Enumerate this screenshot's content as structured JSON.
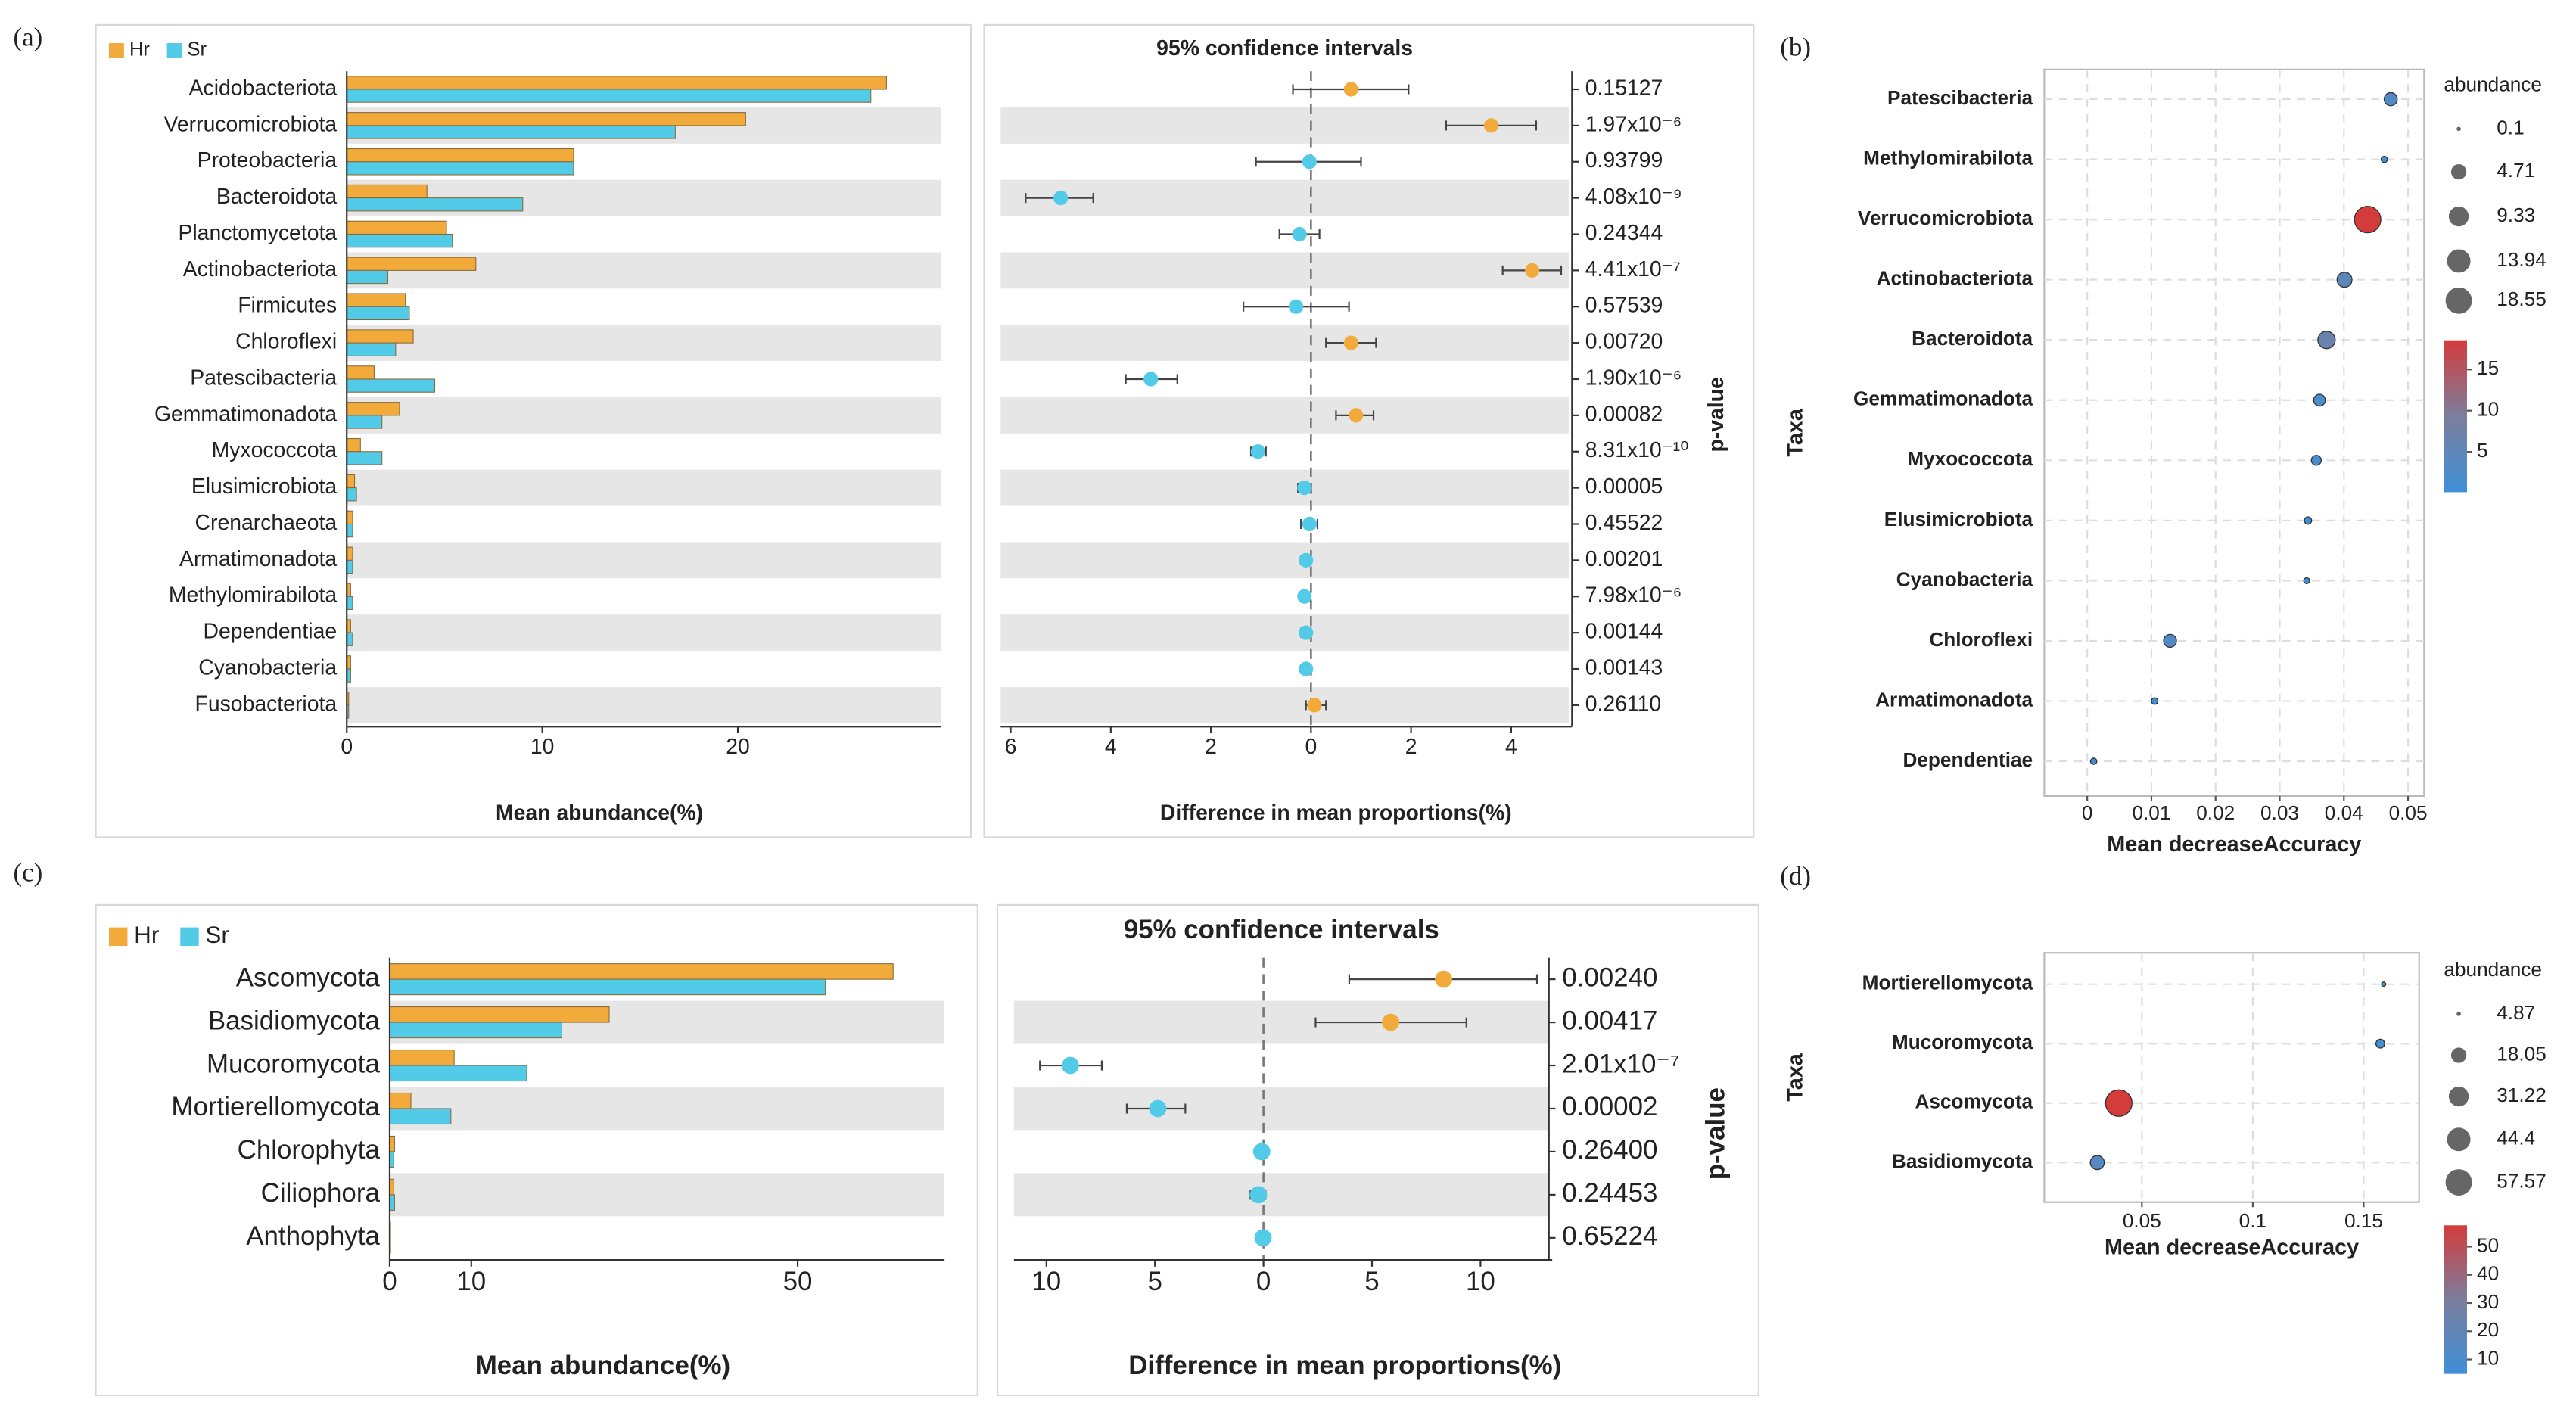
{
  "chart_data": [
    {
      "type": "bar",
      "panel_label": "(a)",
      "xlabel": "Mean abundance(%)",
      "legend": "top-left",
      "categories": [
        "Acidobacteriota",
        "Verrucomicrobiota",
        "Proteobacteria",
        "Bacteroidota",
        "Planctomycetota",
        "Actinobacteriota",
        "Firmicutes",
        "Chloroflexi",
        "Patescibacteria",
        "Gemmatimonadota",
        "Myxococcota",
        "Elusimicrobiota",
        "Crenarchaeota",
        "Armatimonadota",
        "Methylomirabilota",
        "Dependentiae",
        "Cyanobacteria",
        "Fusobacteriota"
      ],
      "series": [
        {
          "name": "Hr",
          "color": "#f2ab3b",
          "values": [
            27.6,
            20.4,
            11.6,
            4.1,
            5.1,
            6.6,
            3.0,
            3.4,
            1.4,
            2.7,
            0.7,
            0.4,
            0.3,
            0.3,
            0.2,
            0.2,
            0.2,
            0.1
          ]
        },
        {
          "name": "Sr",
          "color": "#52cbe9",
          "values": [
            26.8,
            16.8,
            11.6,
            9.0,
            5.4,
            2.1,
            3.2,
            2.5,
            4.5,
            1.8,
            1.8,
            0.5,
            0.3,
            0.3,
            0.3,
            0.3,
            0.2,
            0.1
          ]
        }
      ],
      "xlim": [
        0,
        30.4
      ],
      "xticks": [
        0,
        10,
        20
      ]
    },
    {
      "type": "errorbar",
      "title": "95% confidence intervals",
      "xlabel": "Difference in mean proportions(%)",
      "ylabel": "p-value",
      "positive_color": "#f2ab3b",
      "negative_color": "#52cbe9",
      "values": [
        0.8,
        3.6,
        -0.03,
        -5.0,
        -0.23,
        4.42,
        -0.3,
        0.8,
        -3.2,
        0.9,
        -1.06,
        -0.13,
        -0.03,
        -0.1,
        -0.13,
        -0.1,
        -0.1,
        0.07
      ],
      "lower": [
        -0.36,
        2.7,
        -1.1,
        -5.7,
        -0.63,
        3.83,
        -1.35,
        0.3,
        -3.7,
        0.5,
        -1.2,
        -0.26,
        -0.2,
        -0.2,
        -0.23,
        -0.2,
        -0.2,
        -0.1
      ],
      "upper": [
        1.95,
        4.5,
        1.0,
        -4.35,
        0.17,
        5.0,
        0.76,
        1.3,
        -2.67,
        1.25,
        -0.9,
        0,
        0.13,
        0,
        -0.03,
        0,
        0,
        0.3
      ],
      "p_values": [
        "0.15127",
        "1.97x10⁻⁶",
        "0.93799",
        "4.08x10⁻⁹",
        "0.24344",
        "4.41x10⁻⁷",
        "0.57539",
        "0.00720",
        "1.90x10⁻⁶",
        "0.00082",
        "8.31x10⁻¹⁰",
        "0.00005",
        "0.45522",
        "0.00201",
        "7.98x10⁻⁶",
        "0.00144",
        "0.00143",
        "0.26110"
      ],
      "xlim": [
        -6.2,
        5.15
      ],
      "xticks": [
        {
          "value": -6,
          "label": "6"
        },
        {
          "value": -4,
          "label": "4"
        },
        {
          "value": -2,
          "label": "2"
        },
        0,
        2,
        4
      ]
    },
    {
      "type": "bubble",
      "panel_label": "(b)",
      "xlabel": "Mean decreaseAccuracy",
      "ylabel": "Taxa",
      "legend_title": "abundance",
      "categories": [
        "Patescibacteria",
        "Methylomirabilota",
        "Verrucomicrobiota",
        "Actinobacteriota",
        "Bacteroidota",
        "Gemmatimonadota",
        "Myxococcota",
        "Elusimicrobiota",
        "Cyanobacteria",
        "Chloroflexi",
        "Armatimonadota",
        "Dependentiae"
      ],
      "values": [
        0.0473,
        0.0463,
        0.0437,
        0.0401,
        0.0373,
        0.0362,
        0.0357,
        0.0344,
        0.0342,
        0.0129,
        0.0105,
        0.001
      ],
      "sizes": [
        3.0,
        0.25,
        18.6,
        4.4,
        6.5,
        2.2,
        1.3,
        0.45,
        0.2,
        2.9,
        0.3,
        0.25
      ],
      "size_legend": [
        0.1,
        4.71,
        9.33,
        13.94,
        18.55
      ],
      "colormap": [
        "#3f8fd8",
        "#7b7e9c",
        "#d43c3c"
      ],
      "color_lim": [
        0.1,
        18.55
      ],
      "colorbar_ticks": [
        5,
        10,
        15
      ],
      "xlim": [
        -0.0067,
        0.0525
      ],
      "xticks": [
        0,
        0.01,
        0.02,
        0.03,
        0.04,
        0.05
      ],
      "grid": true
    },
    {
      "type": "bar",
      "panel_label": "(c)",
      "xlabel": "Mean abundance(%)",
      "legend": "top-left",
      "categories": [
        "Ascomycota",
        "Basidiomycota",
        "Mucoromycota",
        "Mortierellomycota",
        "Chlorophyta",
        "Ciliophora",
        "Anthophyta"
      ],
      "series": [
        {
          "name": "Hr",
          "color": "#f2ab3b",
          "values": [
            61.7,
            26.9,
            7.9,
            2.6,
            0.6,
            0.5,
            0.1
          ]
        },
        {
          "name": "Sr",
          "color": "#52cbe9",
          "values": [
            53.4,
            21.1,
            16.8,
            7.5,
            0.5,
            0.6,
            0.1
          ]
        }
      ],
      "xlim": [
        0,
        68
      ],
      "xticks": [
        0,
        10,
        50
      ]
    },
    {
      "type": "errorbar",
      "title": "95% confidence intervals",
      "xlabel": "Difference in mean proportions(%)",
      "ylabel": "p-value",
      "positive_color": "#f2ab3b",
      "negative_color": "#52cbe9",
      "values": [
        8.3,
        5.86,
        -8.9,
        -4.87,
        -0.08,
        -0.23,
        -0.02
      ],
      "lower": [
        3.95,
        2.4,
        -10.3,
        -6.3,
        -0.35,
        -0.6,
        -0.1
      ],
      "upper": [
        12.6,
        9.35,
        -7.45,
        -3.6,
        0.2,
        0.1,
        0.1
      ],
      "p_values": [
        "0.00240",
        "0.00417",
        "2.01x10⁻⁷",
        "0.00002",
        "0.26400",
        "0.24453",
        "0.65224"
      ],
      "xlim": [
        -11.5,
        13.15
      ],
      "xticks": [
        {
          "value": -10,
          "label": "10"
        },
        {
          "value": -5,
          "label": "5"
        },
        0,
        5,
        10
      ]
    },
    {
      "type": "bubble",
      "panel_label": "(d)",
      "xlabel": "Mean decreaseAccuracy",
      "ylabel": "Taxa",
      "legend_title": "abundance",
      "categories": [
        "Mortierellomycota",
        "Mucoromycota",
        "Ascomycota",
        "Basidiomycota"
      ],
      "values": [
        0.159,
        0.1575,
        0.0396,
        0.0299
      ],
      "sizes": [
        3.0,
        7.0,
        57.6,
        15.0
      ],
      "size_legend": [
        4.87,
        18.05,
        31.22,
        44.4,
        57.57
      ],
      "colormap": [
        "#3f8fd8",
        "#7b7e9c",
        "#d43c3c"
      ],
      "color_lim": [
        4.87,
        57.57
      ],
      "colorbar_ticks": [
        10,
        20,
        30,
        40,
        50
      ],
      "xlim": [
        0.006,
        0.175
      ],
      "xticks": [
        0.05,
        0.1,
        0.15
      ],
      "grid": true
    }
  ]
}
